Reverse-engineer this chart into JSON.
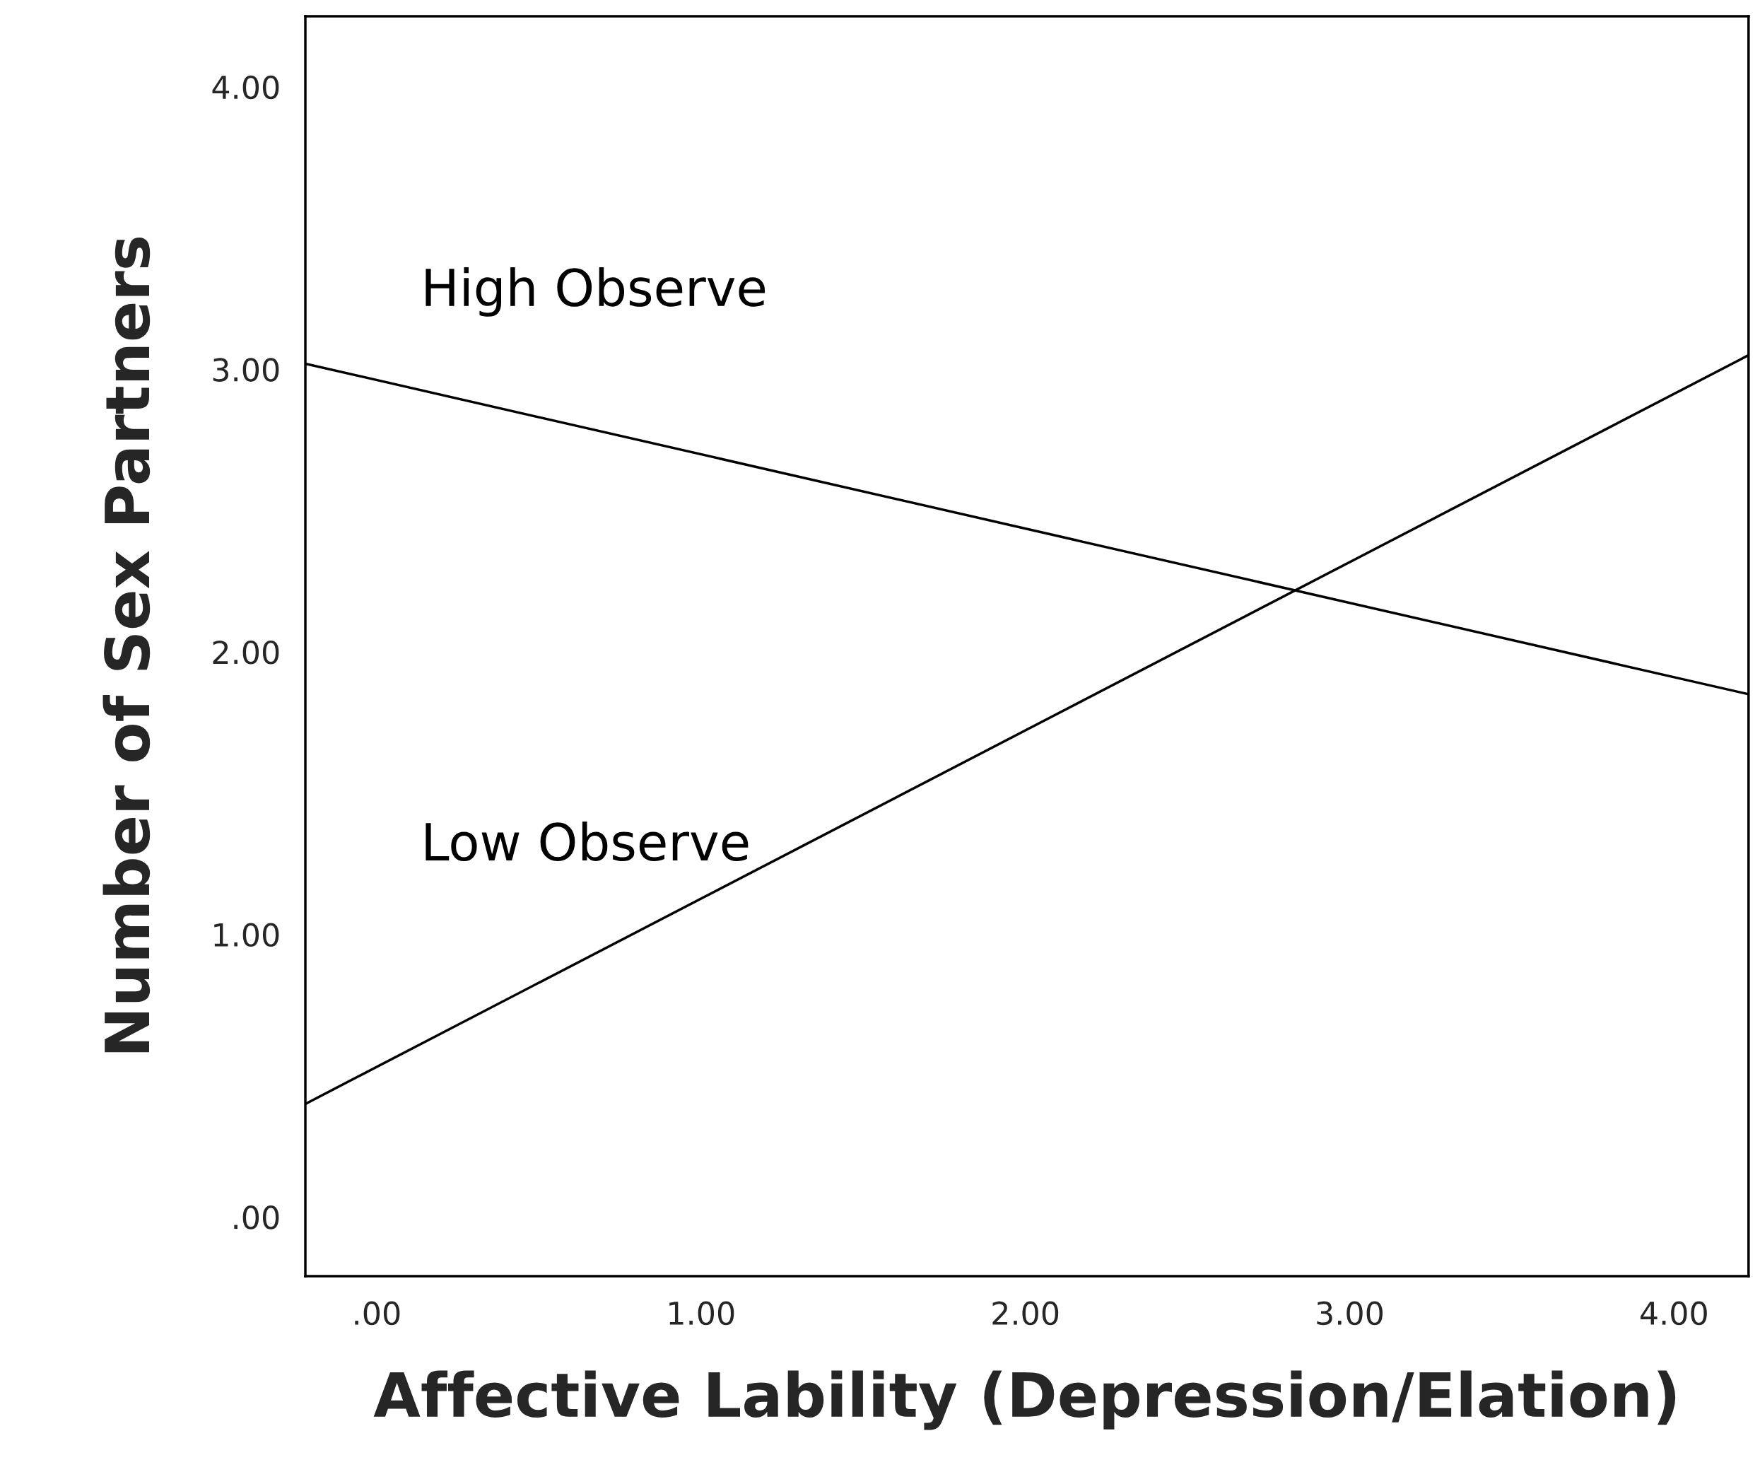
{
  "chart_data": {
    "type": "line",
    "xlabel": "Affective Lability (Depression/Elation)",
    "ylabel": "Number of Sex Partners",
    "x": [
      -0.22,
      4.23
    ],
    "series": [
      {
        "name": "High Observe",
        "color": "#000000",
        "values": [
          3.02,
          1.85
        ]
      },
      {
        "name": "Low Observe",
        "color": "#000000",
        "values": [
          0.4,
          3.05
        ]
      }
    ],
    "xlim": [
      -0.22,
      4.23
    ],
    "ylim": [
      -0.21,
      4.25
    ],
    "xticks": [
      {
        "value": 0,
        "label": ".00"
      },
      {
        "value": 1,
        "label": "1.00"
      },
      {
        "value": 2,
        "label": "2.00"
      },
      {
        "value": 3,
        "label": "3.00"
      },
      {
        "value": 4,
        "label": "4.00"
      }
    ],
    "yticks": [
      {
        "value": 0,
        "label": ".00"
      },
      {
        "value": 1,
        "label": "1.00"
      },
      {
        "value": 2,
        "label": "2.00"
      },
      {
        "value": 3,
        "label": "3.00"
      },
      {
        "value": 4,
        "label": "4.00"
      }
    ],
    "grid": false,
    "legend": false,
    "line_style": "solid",
    "marker": "none"
  }
}
